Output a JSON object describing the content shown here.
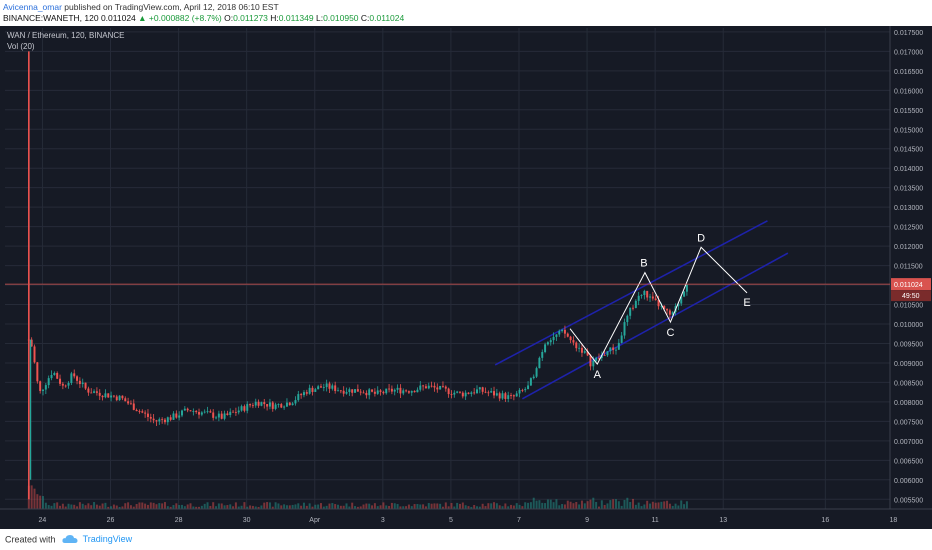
{
  "header": {
    "author": "Avicenna_omar",
    "published_text": "published on TradingView.com, April 12, 2018 06:10 EST",
    "symbol": "BINANCE:WANETH, 120",
    "last": "0.011024",
    "change": "▲ +0.000882 (+8.7%)",
    "o_label": "O:",
    "o_value": "0.011273",
    "h_label": "H:",
    "h_value": "0.011349",
    "l_label": "L:",
    "l_value": "0.010950",
    "c_label": "C:",
    "c_value": "0.011024"
  },
  "legend": {
    "title": "WAN / Ethereum, 120, BINANCE",
    "indicator": "Vol (20)"
  },
  "footer": {
    "created_with": "Created with",
    "brand": "TradingView"
  },
  "colors": {
    "background": "#161a25",
    "grid": "#262b38",
    "up": "#26a69a",
    "down": "#ef5350",
    "channel": "#1e22aa",
    "price_line": "#d9534f",
    "wave": "#ffffff",
    "axis_text": "#b2b5be"
  },
  "chart_data": {
    "type": "candlestick",
    "title": "WAN / Ethereum, 120, BINANCE",
    "x_ticks": [
      "24",
      "26",
      "28",
      "30",
      "Apr",
      "3",
      "5",
      "7",
      "9",
      "11",
      "13",
      "16",
      "18"
    ],
    "xlim": [
      22.6,
      48.6
    ],
    "ylim": [
      0.00525,
      0.0176
    ],
    "y_ticks": [
      "0.017500",
      "0.017000",
      "0.016500",
      "0.016000",
      "0.015500",
      "0.015000",
      "0.014500",
      "0.014000",
      "0.013500",
      "0.013000",
      "0.012500",
      "0.012000",
      "0.011500",
      "0.011000",
      "0.010500",
      "0.010000",
      "0.009500",
      "0.009000",
      "0.008500",
      "0.008000",
      "0.007500",
      "0.007000",
      "0.006500",
      "0.006000",
      "0.005500"
    ],
    "last_price_label": "0.011024",
    "countdown_label": "49:50",
    "last_price": 0.011024,
    "anchors": [
      [
        23.3,
        0.0096
      ],
      [
        23.4,
        0.0094
      ],
      [
        23.6,
        0.0082
      ],
      [
        23.8,
        0.0085
      ],
      [
        24.0,
        0.0088
      ],
      [
        24.3,
        0.0084
      ],
      [
        24.6,
        0.0087
      ],
      [
        25.0,
        0.0083
      ],
      [
        25.5,
        0.0082
      ],
      [
        26.0,
        0.0081
      ],
      [
        26.5,
        0.0078
      ],
      [
        27.0,
        0.0075
      ],
      [
        27.5,
        0.0076
      ],
      [
        28.0,
        0.0078
      ],
      [
        28.5,
        0.0077
      ],
      [
        29.0,
        0.0076
      ],
      [
        29.5,
        0.0078
      ],
      [
        30.0,
        0.008
      ],
      [
        30.5,
        0.0079
      ],
      [
        31.0,
        0.008
      ],
      [
        31.5,
        0.0083
      ],
      [
        32.0,
        0.0084
      ],
      [
        32.5,
        0.0083
      ],
      [
        33.0,
        0.0083
      ],
      [
        33.5,
        0.0082
      ],
      [
        34.0,
        0.0083
      ],
      [
        34.5,
        0.0083
      ],
      [
        35.0,
        0.0084
      ],
      [
        35.5,
        0.0083
      ],
      [
        36.0,
        0.0082
      ],
      [
        36.5,
        0.0083
      ],
      [
        37.0,
        0.0082
      ],
      [
        37.5,
        0.0081
      ],
      [
        38.0,
        0.0084
      ],
      [
        38.2,
        0.0089
      ],
      [
        38.5,
        0.0096
      ],
      [
        38.8,
        0.0097
      ],
      [
        39.0,
        0.0098
      ],
      [
        39.3,
        0.0095
      ],
      [
        39.6,
        0.0093
      ],
      [
        39.8,
        0.009
      ],
      [
        40.0,
        0.0091
      ],
      [
        40.3,
        0.0093
      ],
      [
        40.6,
        0.0094
      ],
      [
        40.8,
        0.01
      ],
      [
        41.0,
        0.0104
      ],
      [
        41.2,
        0.0107
      ],
      [
        41.4,
        0.0108
      ],
      [
        41.6,
        0.0106
      ],
      [
        41.8,
        0.0105
      ],
      [
        42.0,
        0.0103
      ],
      [
        42.2,
        0.0102
      ],
      [
        42.4,
        0.0106
      ],
      [
        42.6,
        0.011
      ],
      [
        42.7,
        0.01124
      ]
    ],
    "volume_label": "Vol (20)",
    "wave_labels": [
      {
        "label": "A",
        "x": 40.0,
        "y": 0.00897
      },
      {
        "label": "B",
        "x": 41.4,
        "y": 0.01132
      },
      {
        "label": "C",
        "x": 42.15,
        "y": 0.01005
      },
      {
        "label": "D",
        "x": 43.05,
        "y": 0.01197
      },
      {
        "label": "E",
        "x": 44.4,
        "y": 0.0108
      }
    ],
    "wave_path": [
      [
        39.2,
        0.00988
      ],
      [
        40.0,
        0.00897
      ],
      [
        41.4,
        0.01132
      ],
      [
        42.15,
        0.01005
      ],
      [
        43.05,
        0.01197
      ],
      [
        44.4,
        0.0108
      ]
    ],
    "channel_lines": [
      [
        [
          37.0,
          0.00895
        ],
        [
          45.0,
          0.01265
        ]
      ],
      [
        [
          37.8,
          0.00808
        ],
        [
          45.6,
          0.01182
        ]
      ]
    ]
  }
}
